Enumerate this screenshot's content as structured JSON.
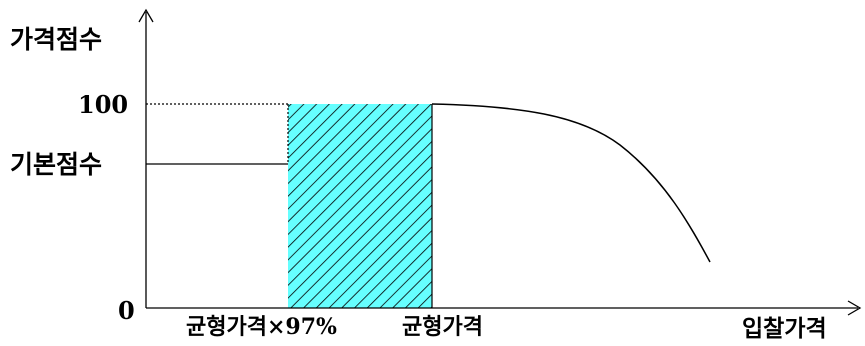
{
  "axes": {
    "y_axis_title": "가격점수",
    "x_axis_title": "입찰가격",
    "origin_label": "0",
    "y_max_label": "100",
    "y_base_label": "기본점수"
  },
  "x_ticks": {
    "left_label": "균형가격×97%",
    "right_label": "균형가격"
  },
  "colors": {
    "hatch_fill": "#66ffff",
    "hatch_line": "#000000",
    "axis": "#000000"
  }
}
